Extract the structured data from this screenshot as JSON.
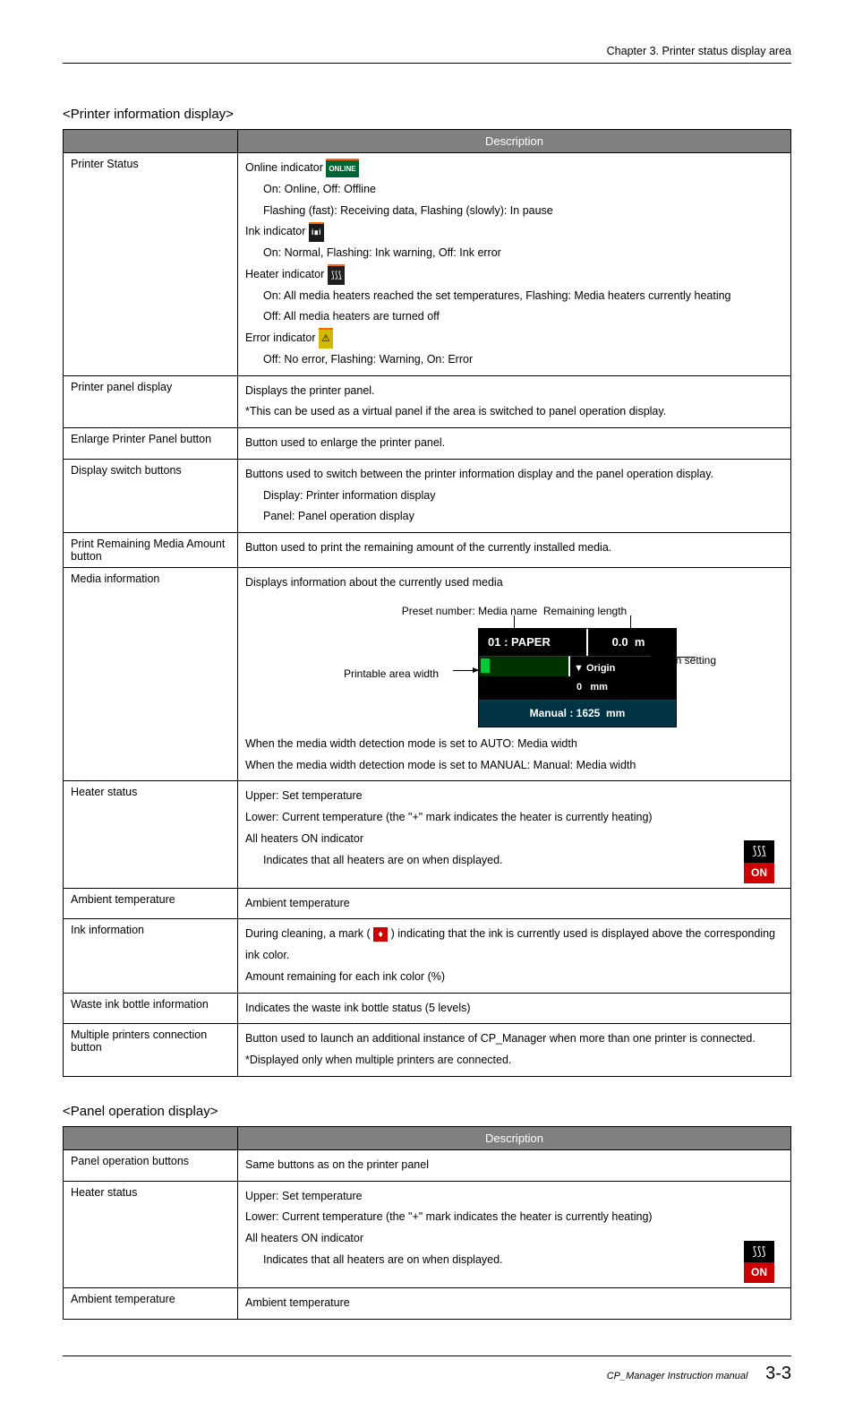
{
  "chapter_header": "Chapter 3. Printer status display area",
  "section1_title": "<Printer information display>",
  "section2_title": "<Panel operation display>",
  "table_header": "Description",
  "table1": {
    "rows": [
      {
        "label": "Printer Status",
        "desc_html": "Online indicator <span class='badge badge-online'>ONLINE</span><br><span class='indent'>On: Online, Off: Offline</span><span class='indent'>Flashing (fast): Receiving data, Flashing (slowly): In pause</span>Ink indicator <span class='badge badge-ink'>i∎i</span><br><span class='indent'>On: Normal, Flashing: Ink warning, Off: Ink error</span>Heater indicator <span class='badge badge-heater'>⟆⟆⟆</span><br><span class='indent'>On: All media heaters reached the set temperatures, Flashing: Media heaters currently heating</span><span class='indent'>Off: All media heaters are turned off</span>Error indicator <span class='badge badge-error'>⚠</span><br><span class='indent'>Off: No error, Flashing: Warning, On: Error</span>"
      },
      {
        "label": "Printer panel display",
        "desc_html": "Displays the printer panel.<br>*This can be used as a virtual panel if the area is switched to panel operation display."
      },
      {
        "label": "Enlarge Printer Panel button",
        "desc_html": "Button used to enlarge the printer panel."
      },
      {
        "label": "Display switch buttons",
        "desc_html": "Buttons used to switch between the printer information display and the panel operation display.<br><span class='indent'>Display: Printer information display</span><span class='indent'>Panel: Panel operation display</span>"
      },
      {
        "label": "Print Remaining Media Amount button",
        "desc_html": "Button used to print the remaining amount of the currently installed media."
      },
      {
        "label": "Media information",
        "desc_html": "Displays information about the currently used media<div class='media-diagram'><span class='preset-label'>Preset number: Media name&nbsp;&nbsp;Remaining length</span><div class='preset-line' style='left:300px;top:16px;height:17px;'></div><div class='preset-line' style='left:430px;top:16px;height:17px;'></div><div class='diagram-box'><div class='diagram-row'><div class='cell-paper'>01 : PAPER</div><div class='cell-len'>0.0&nbsp;&nbsp;m</div></div><div class='diagram-row'><div class='cell-progress'></div><div class='cell-origin'>▼ Origin<br>&nbsp;0&nbsp;&nbsp;&nbsp;mm</div></div><div class='diagram-row'><div class='cell-manual'>Manual : 1625&nbsp;&nbsp;mm</div></div></div><span class='printable-label'>Printable area width</span><div class='arrow-h' style='left:232px;top:77px;width:28px;'></div><span class='origin-label'>Origin setting</span><div class='arrow-h left' style='left:475px;top:62px;width:28px;'></div></div>When the media width detection mode is set to <b>AUTO</b>: Media width<br>When the media width detection mode is set to <b>MANUAL</b>: Manual: Media width"
      },
      {
        "label": "Heater status",
        "desc_html": "Upper: Set temperature<br>Lower: Current temperature (the \"+\" mark indicates the heater is currently heating)<br>All heaters ON indicator<br><span class='indent'>Indicates that all heaters are on when displayed.</span><div class='heater-on-icon'><div class='waves'>⟆⟆⟆</div><div class='on'>ON</div></div>"
      },
      {
        "label": "Ambient temperature",
        "desc_html": "Ambient temperature"
      },
      {
        "label": "Ink information",
        "desc_html": "During cleaning, a mark ( <span class='cleaning-mark'>♦</span> ) indicating that the ink is currently used is displayed above the corresponding ink color.<br>Amount remaining for each ink color (%)"
      },
      {
        "label": "Waste ink bottle information",
        "desc_html": "Indicates the waste ink bottle status (5 levels)"
      },
      {
        "label": "Multiple printers connection button",
        "desc_html": "Button used to launch an additional instance of CP_Manager when more than one printer is connected.<br>*Displayed only when multiple printers are connected."
      }
    ]
  },
  "table2": {
    "rows": [
      {
        "label": "Panel operation buttons",
        "desc_html": "Same buttons as on the printer panel"
      },
      {
        "label": "Heater status",
        "desc_html": "Upper: Set temperature<br>Lower: Current temperature (the \"+\" mark indicates the heater is currently heating)<br>All heaters ON indicator<br><span class='indent'>Indicates that all heaters are on when displayed.</span><div class='heater-on-icon'><div class='waves'>⟆⟆⟆</div><div class='on'>ON</div></div>"
      },
      {
        "label": "Ambient temperature",
        "desc_html": "Ambient temperature"
      }
    ]
  },
  "footer": {
    "manual": "CP_Manager Instruction manual",
    "page": "3-3"
  }
}
